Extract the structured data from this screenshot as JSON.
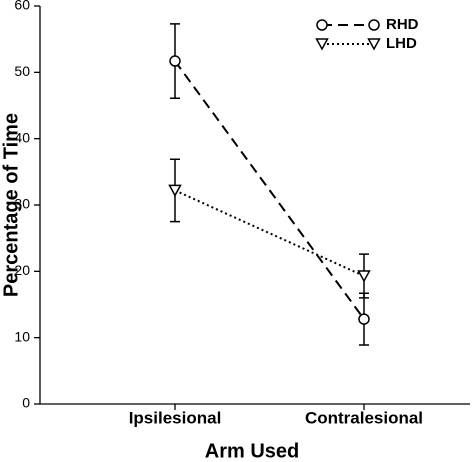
{
  "chart_data": {
    "type": "line",
    "x_label": "Arm Used",
    "y_label": "Percentage of Time",
    "categories": [
      "Ipsilesional",
      "Contralesional"
    ],
    "series": [
      {
        "name": "RHD",
        "color": "#000000",
        "linestyle": "dashed",
        "marker": "circle",
        "values": [
          51.7,
          12.8
        ],
        "errors": [
          5.6,
          3.9
        ]
      },
      {
        "name": "LHD",
        "color": "#000000",
        "linestyle": "dotted",
        "marker": "triangle-down",
        "values": [
          32.2,
          19.3
        ],
        "errors": [
          4.7,
          3.3
        ]
      }
    ],
    "ylim": [
      0,
      60
    ],
    "yticks": [
      0,
      10,
      20,
      30,
      40,
      50,
      60
    ],
    "legend": "upper right"
  }
}
